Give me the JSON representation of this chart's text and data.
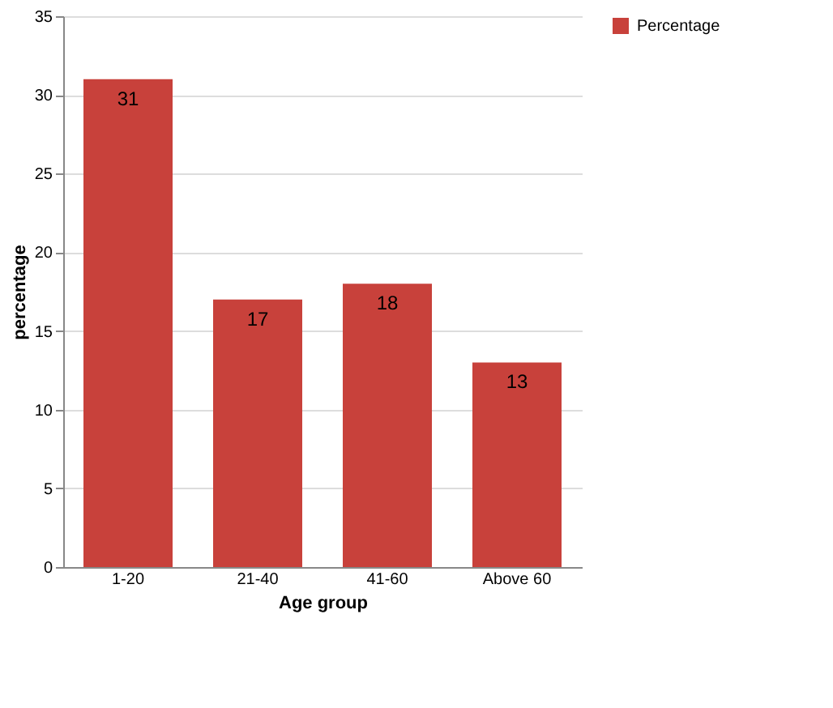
{
  "chart_data": {
    "type": "bar",
    "xlabel": "Age group",
    "ylabel": "percentage",
    "categories": [
      "1-20",
      "21-40",
      "41-60",
      "Above 60"
    ],
    "series": [
      {
        "name": "Percentage",
        "color": "#c8413b",
        "values": [
          31,
          17,
          18,
          13
        ]
      }
    ],
    "ylim": [
      0,
      35
    ],
    "yticks": [
      0,
      5,
      10,
      15,
      20,
      25,
      30,
      35
    ],
    "grid": "y",
    "legend": "right",
    "data_labels": true
  }
}
